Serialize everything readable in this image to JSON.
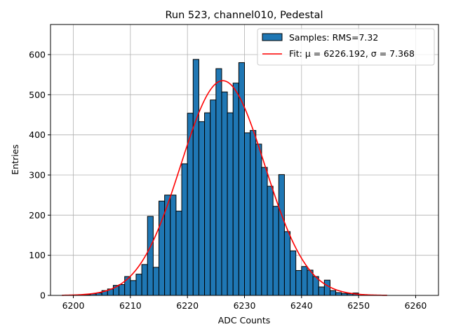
{
  "chart_data": {
    "type": "bar",
    "title": "Run 523, channel010, Pedestal",
    "xlabel": "ADC Counts",
    "ylabel": "Entries",
    "xlim": [
      6196,
      6264
    ],
    "ylim": [
      0,
      675
    ],
    "x_ticks": [
      6200,
      6210,
      6220,
      6230,
      6240,
      6250,
      6260
    ],
    "y_ticks": [
      0,
      100,
      200,
      300,
      400,
      500,
      600
    ],
    "grid": true,
    "legend_position": "top-right",
    "colors": {
      "bars": "#1f77b4",
      "bar_edge": "#000000",
      "fit": "#ff0000"
    },
    "histogram": {
      "name": "Samples: RMS=7.32",
      "bin_width": 1,
      "bin_starts": [
        6200,
        6201,
        6202,
        6203,
        6204,
        6205,
        6206,
        6207,
        6208,
        6209,
        6210,
        6211,
        6212,
        6213,
        6214,
        6215,
        6216,
        6217,
        6218,
        6219,
        6220,
        6221,
        6222,
        6223,
        6224,
        6225,
        6226,
        6227,
        6228,
        6229,
        6230,
        6231,
        6232,
        6233,
        6234,
        6235,
        6236,
        6237,
        6238,
        6239,
        6240,
        6241,
        6242,
        6243,
        6244,
        6245,
        6246,
        6247,
        6248,
        6249
      ],
      "counts": [
        1,
        1,
        2,
        4,
        6,
        12,
        16,
        25,
        27,
        47,
        37,
        53,
        77,
        197,
        70,
        235,
        250,
        250,
        210,
        328,
        454,
        588,
        433,
        455,
        487,
        565,
        507,
        455,
        529,
        580,
        405,
        411,
        377,
        319,
        272,
        222,
        301,
        159,
        111,
        62,
        72,
        63,
        47,
        21,
        38,
        12,
        7,
        5,
        4,
        6
      ]
    },
    "fit": {
      "name": "Fit: μ = 6226.192, σ = 7.368",
      "mu": 6226.192,
      "sigma": 7.368,
      "amplitude": 535,
      "x_range": [
        6198,
        6255
      ]
    }
  }
}
